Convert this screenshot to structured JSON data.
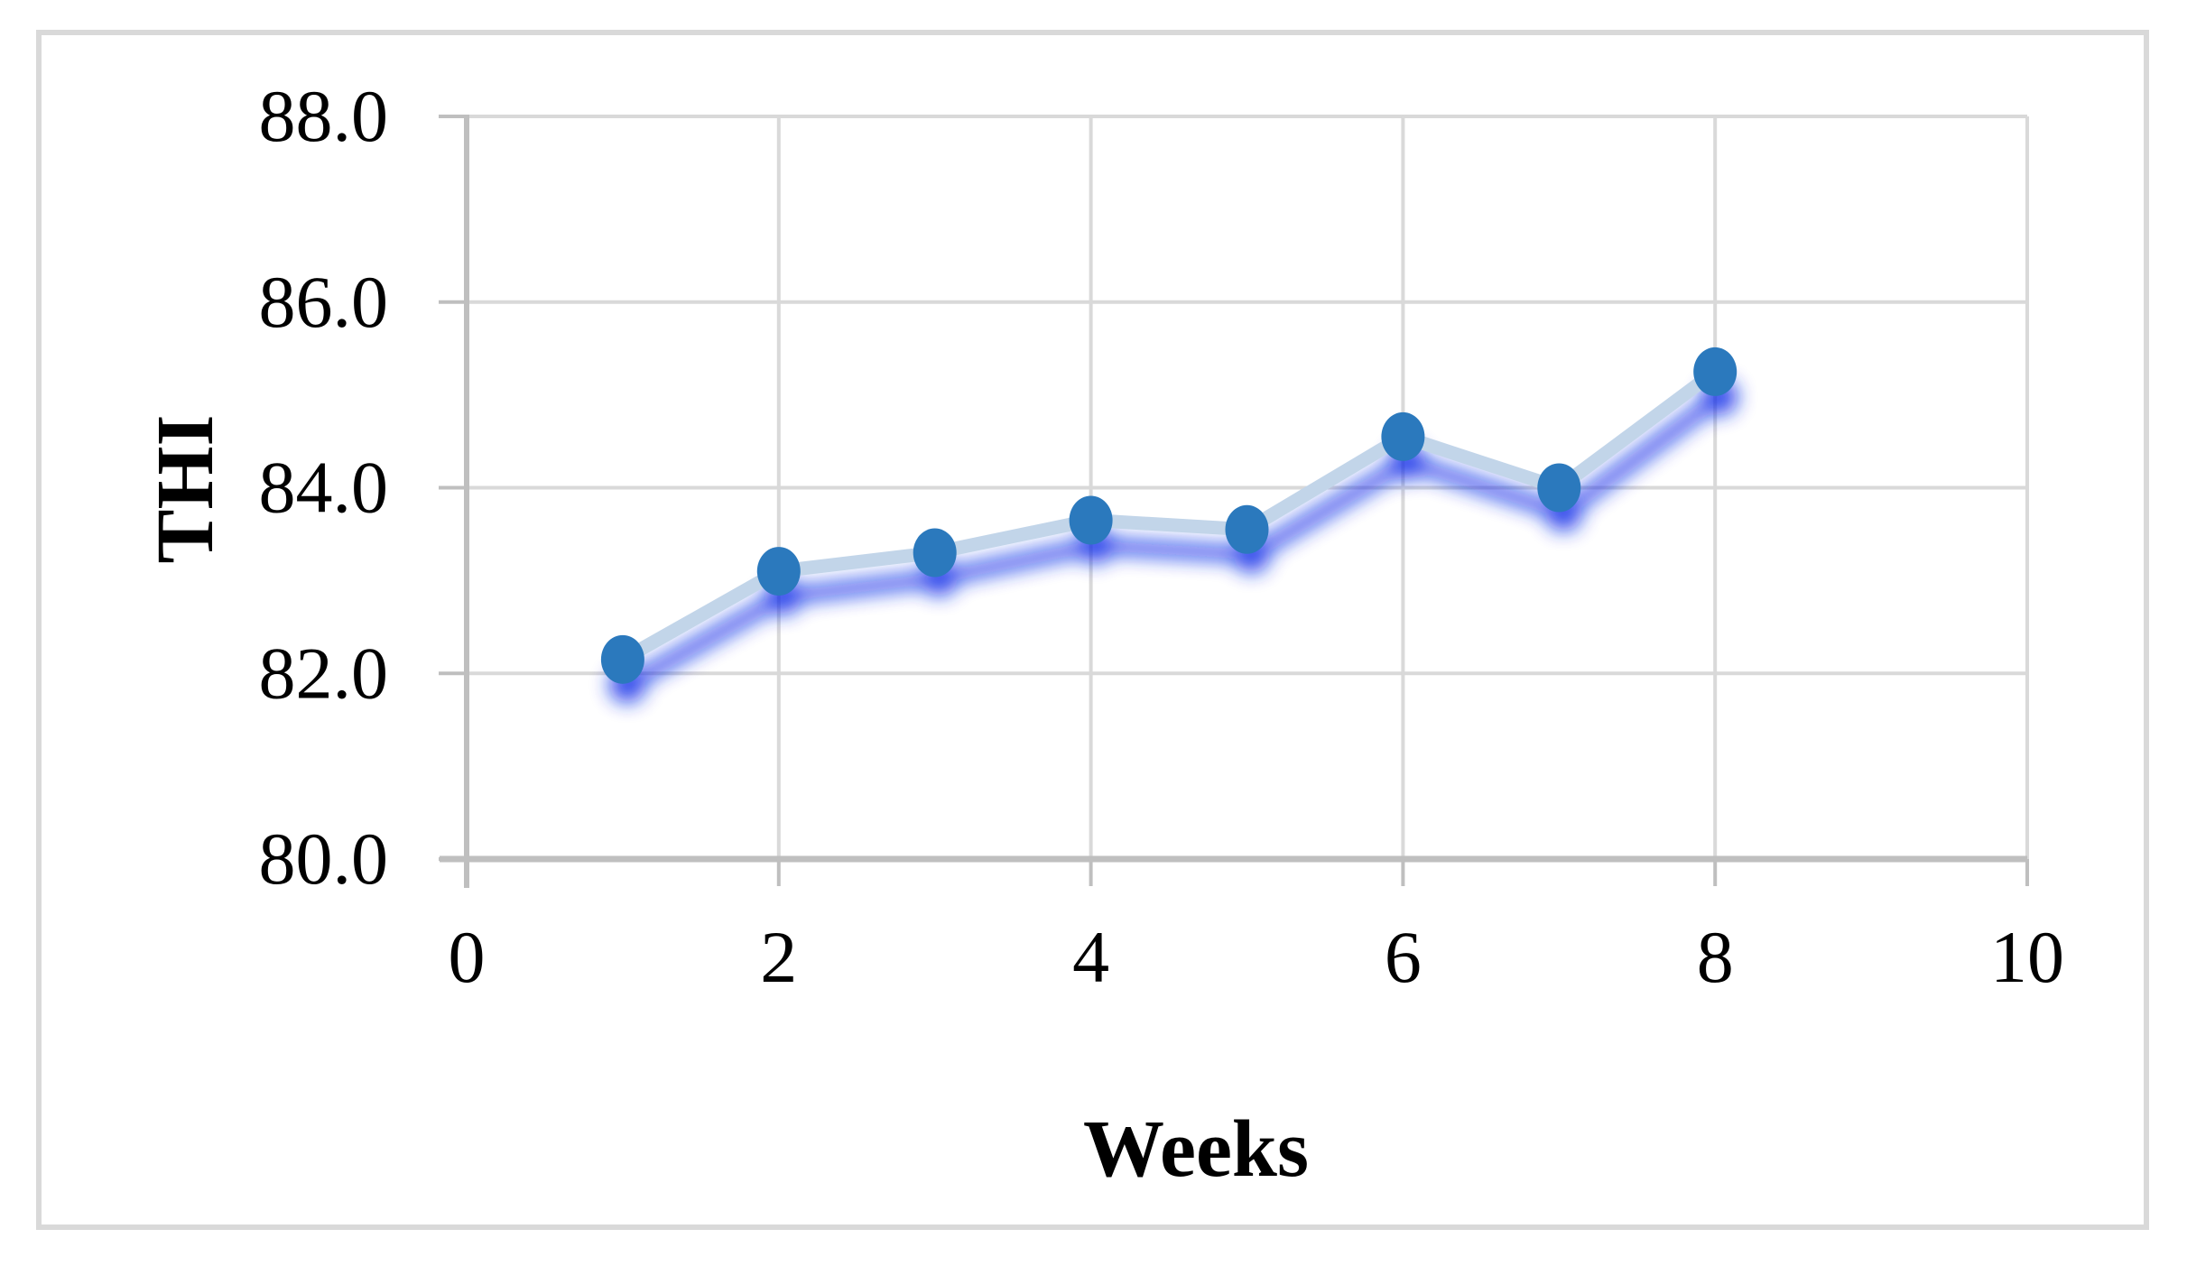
{
  "chart_data": {
    "type": "line",
    "title": "",
    "xlabel": "Weeks",
    "ylabel": "THI",
    "x": [
      1,
      2,
      3,
      4,
      5,
      6,
      7,
      8
    ],
    "series": [
      {
        "name": "THI",
        "values": [
          82.15,
          83.1,
          83.3,
          83.65,
          83.55,
          84.55,
          84.0,
          85.25
        ]
      }
    ],
    "xlim": [
      0,
      10
    ],
    "ylim": [
      80,
      88
    ],
    "x_ticks": [
      "0",
      "2",
      "4",
      "6",
      "8",
      "10"
    ],
    "y_ticks": [
      "80.0",
      "82.0",
      "84.0",
      "86.0",
      "88.0"
    ],
    "grid": true,
    "legend": "none",
    "marker": "circle",
    "line_style": "solid-with-blue-glow-shadow",
    "colors": {
      "marker": "#2B79BD",
      "line": "#C2D5E9",
      "glow": "#0B2CE8",
      "gridline": "#D9D9D9",
      "axis": "#BFBFBF",
      "text": "#000000",
      "border": "#D9D9D9",
      "background": "#FFFFFF"
    }
  }
}
